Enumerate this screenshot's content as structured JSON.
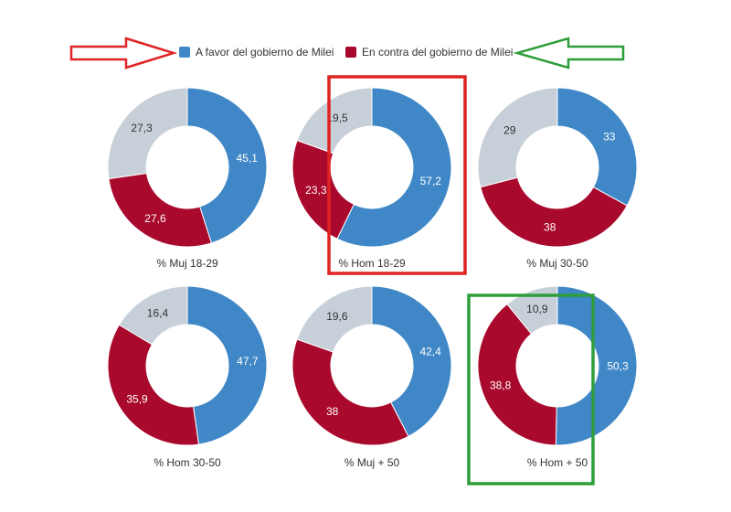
{
  "legend": {
    "favor": "A favor del gobierno de Milei",
    "contra": "En contra del gobierno de Milei"
  },
  "colors": {
    "favor": "#3f87c6",
    "contra": "#a8092c",
    "resto": "#c7d0d8",
    "red_highlight": "#e02424",
    "green_highlight": "#2e9e3a"
  },
  "chart_data": [
    {
      "type": "pie",
      "label": "% Muj 18-29",
      "values": {
        "favor": "45,1",
        "contra": "27,6",
        "resto": "27,3"
      }
    },
    {
      "type": "pie",
      "label": "% Hom 18-29",
      "values": {
        "favor": "57,2",
        "contra": "23,3",
        "resto": "19,5"
      }
    },
    {
      "type": "pie",
      "label": "% Muj 30-50",
      "values": {
        "favor": "33",
        "contra": "38",
        "resto": "29"
      }
    },
    {
      "type": "pie",
      "label": "% Hom 30-50",
      "values": {
        "favor": "47,7",
        "contra": "35,9",
        "resto": "16,4"
      }
    },
    {
      "type": "pie",
      "label": "% Muj + 50",
      "values": {
        "favor": "42,4",
        "contra": "38",
        "resto": "19,6"
      }
    },
    {
      "type": "pie",
      "label": "% Hom + 50",
      "values": {
        "favor": "50,3",
        "contra": "38,8",
        "resto": "10,9"
      }
    }
  ]
}
